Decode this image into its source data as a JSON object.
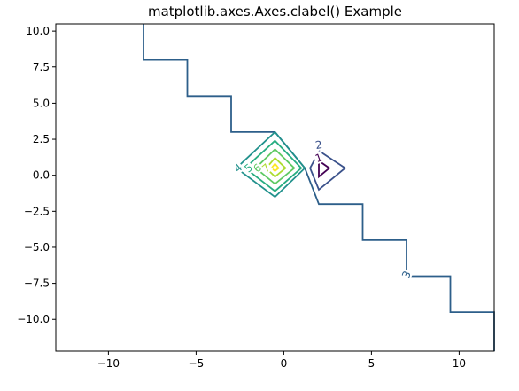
{
  "chart_data": {
    "type": "contour",
    "title": "matplotlib.axes.Axes.clabel() Example",
    "xlabel": "",
    "ylabel": "",
    "xlim": [
      -13,
      12
    ],
    "ylim": [
      -12.2,
      10.5
    ],
    "xticks": [
      -10,
      -5,
      0,
      5,
      10
    ],
    "xtick_labels": [
      "−10",
      "−5",
      "0",
      "5",
      "10"
    ],
    "yticks": [
      10.0,
      7.5,
      5.0,
      2.5,
      0.0,
      -2.5,
      -5.0,
      -7.5,
      -10.0
    ],
    "ytick_labels": [
      "10.0",
      "7.5",
      "5.0",
      "2.5",
      "0.0",
      "−2.5",
      "−5.0",
      "−7.5",
      "−10.0"
    ],
    "grid": false,
    "levels": [
      {
        "level": "1",
        "color": "#440154",
        "path": [
          [
            2.0,
            1.0
          ],
          [
            2.6,
            0.5
          ],
          [
            2.0,
            -0.1
          ],
          [
            2.0,
            1.0
          ]
        ],
        "label": {
          "text": "1",
          "x": 2.0,
          "y": 1.2,
          "rotation": -20
        }
      },
      {
        "level": "2",
        "color": "#3b528b",
        "path": [
          [
            2.0,
            1.7
          ],
          [
            3.5,
            0.5
          ],
          [
            2.0,
            -1.0
          ],
          [
            1.5,
            0.5
          ],
          [
            1.9,
            1.4
          ]
        ],
        "label": {
          "text": "2",
          "x": 2.0,
          "y": 2.1,
          "rotation": -10
        }
      },
      {
        "level": "3",
        "color": "#2d5f8a",
        "path": [
          [
            -8.0,
            10.5
          ],
          [
            -8.0,
            8.0
          ],
          [
            -5.5,
            8.0
          ],
          [
            -5.5,
            5.5
          ],
          [
            -3.0,
            5.5
          ],
          [
            -3.0,
            3.0
          ],
          [
            -0.5,
            3.0
          ],
          [
            1.2,
            0.5
          ],
          [
            2.0,
            -2.0
          ],
          [
            4.5,
            -2.0
          ],
          [
            4.5,
            -4.5
          ],
          [
            7.0,
            -4.5
          ],
          [
            7.0,
            -7.0
          ],
          [
            9.5,
            -7.0
          ],
          [
            9.5,
            -9.5
          ],
          [
            12.0,
            -9.5
          ],
          [
            12.0,
            -12.2
          ]
        ],
        "label": {
          "text": "3",
          "x": 7.0,
          "y": -6.9,
          "rotation": -65
        }
      },
      {
        "level": "4",
        "color": "#21918c",
        "path": [
          [
            -0.5,
            3.0
          ],
          [
            -2.7,
            0.5
          ],
          [
            -0.5,
            -1.5
          ],
          [
            1.2,
            0.5
          ],
          [
            -0.5,
            3.0
          ]
        ],
        "label": {
          "text": "4",
          "x": -2.6,
          "y": 0.5,
          "rotation": -40
        }
      },
      {
        "level": "5",
        "color": "#27ad81",
        "path": [
          [
            -0.5,
            2.4
          ],
          [
            -2.2,
            0.5
          ],
          [
            -0.5,
            -1.1
          ],
          [
            1.0,
            0.5
          ],
          [
            -0.5,
            2.4
          ]
        ],
        "label": {
          "text": "5",
          "x": -2.0,
          "y": 0.5,
          "rotation": -40
        }
      },
      {
        "level": "6",
        "color": "#5ec962",
        "path": [
          [
            -0.5,
            1.8
          ],
          [
            -1.6,
            0.5
          ],
          [
            -0.5,
            -0.6
          ],
          [
            0.6,
            0.5
          ],
          [
            -0.5,
            1.8
          ]
        ],
        "label": {
          "text": "6",
          "x": -1.5,
          "y": 0.5,
          "rotation": -40
        }
      },
      {
        "level": "7",
        "color": "#addc30",
        "path": [
          [
            -0.5,
            1.2
          ],
          [
            -1.0,
            0.5
          ],
          [
            -0.5,
            -0.1
          ],
          [
            0.1,
            0.5
          ],
          [
            -0.5,
            1.2
          ]
        ],
        "label": {
          "text": "7",
          "x": -1.0,
          "y": 0.5,
          "rotation": -40
        }
      },
      {
        "level": "8",
        "color": "#fde725",
        "path": [
          [
            -0.5,
            0.8
          ],
          [
            -0.7,
            0.5
          ],
          [
            -0.5,
            0.3
          ],
          [
            -0.3,
            0.5
          ],
          [
            -0.5,
            0.8
          ]
        ],
        "label": {
          "text": "",
          "x": -0.5,
          "y": 0.5,
          "rotation": 0
        }
      }
    ]
  }
}
